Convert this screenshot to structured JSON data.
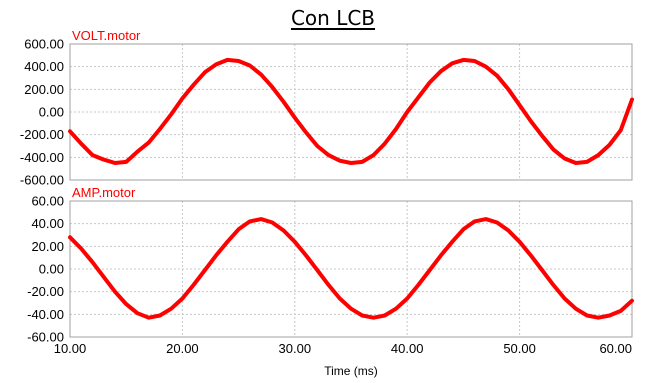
{
  "title": "Con LCB",
  "chart_data": [
    {
      "type": "line",
      "title": "VOLT.motor",
      "color": "#ff0000",
      "xlim": [
        10,
        60
      ],
      "ylim": [
        -600,
        600
      ],
      "yticks": [
        "600.00",
        "400.00",
        "200.00",
        "0.00",
        "-200.00",
        "-400.00",
        "-600.00"
      ],
      "grid": true,
      "series": [
        {
          "name": "VOLT.motor",
          "x": [
            10,
            11,
            12,
            13,
            14,
            15,
            16,
            17,
            18,
            19,
            20,
            21,
            22,
            23,
            24,
            25,
            26,
            27,
            28,
            29,
            30,
            31,
            32,
            33,
            34,
            35,
            36,
            37,
            38,
            39,
            40,
            41,
            42,
            43,
            44,
            45,
            46,
            47,
            48,
            49,
            50,
            51,
            52,
            53,
            54,
            55,
            56,
            57,
            58,
            59,
            60
          ],
          "values": [
            -170,
            -280,
            -380,
            -420,
            -450,
            -440,
            -350,
            -270,
            -150,
            -20,
            120,
            240,
            350,
            420,
            460,
            450,
            410,
            330,
            220,
            90,
            -50,
            -180,
            -300,
            -380,
            -430,
            -450,
            -440,
            -380,
            -280,
            -150,
            0,
            130,
            260,
            360,
            430,
            460,
            450,
            400,
            320,
            200,
            60,
            -80,
            -210,
            -330,
            -410,
            -450,
            -440,
            -380,
            -290,
            -160,
            110
          ]
        }
      ]
    },
    {
      "type": "line",
      "title": "AMP.motor",
      "color": "#ff0000",
      "xlabel": "Time (ms)",
      "xlim": [
        10,
        60
      ],
      "ylim": [
        -60,
        60
      ],
      "yticks": [
        "60.00",
        "40.00",
        "20.00",
        "0.00",
        "-20.00",
        "-40.00",
        "-60.00"
      ],
      "xticks": [
        "10.00",
        "20.00",
        "30.00",
        "40.00",
        "50.00",
        "60.00"
      ],
      "grid": true,
      "series": [
        {
          "name": "AMP.motor",
          "x": [
            10,
            11,
            12,
            13,
            14,
            15,
            16,
            17,
            18,
            19,
            20,
            21,
            22,
            23,
            24,
            25,
            26,
            27,
            28,
            29,
            30,
            31,
            32,
            33,
            34,
            35,
            36,
            37,
            38,
            39,
            40,
            41,
            42,
            43,
            44,
            45,
            46,
            47,
            48,
            49,
            50,
            51,
            52,
            53,
            54,
            55,
            56,
            57,
            58,
            59,
            60
          ],
          "values": [
            28,
            18,
            6,
            -7,
            -20,
            -31,
            -39,
            -43,
            -41,
            -35,
            -26,
            -14,
            -1,
            12,
            24,
            35,
            42,
            44,
            41,
            34,
            24,
            12,
            -1,
            -14,
            -26,
            -35,
            -41,
            -43,
            -41,
            -35,
            -26,
            -14,
            -1,
            12,
            24,
            35,
            42,
            44,
            41,
            34,
            24,
            12,
            -1,
            -14,
            -26,
            -35,
            -41,
            -43,
            -41,
            -37,
            -28
          ]
        }
      ]
    }
  ]
}
